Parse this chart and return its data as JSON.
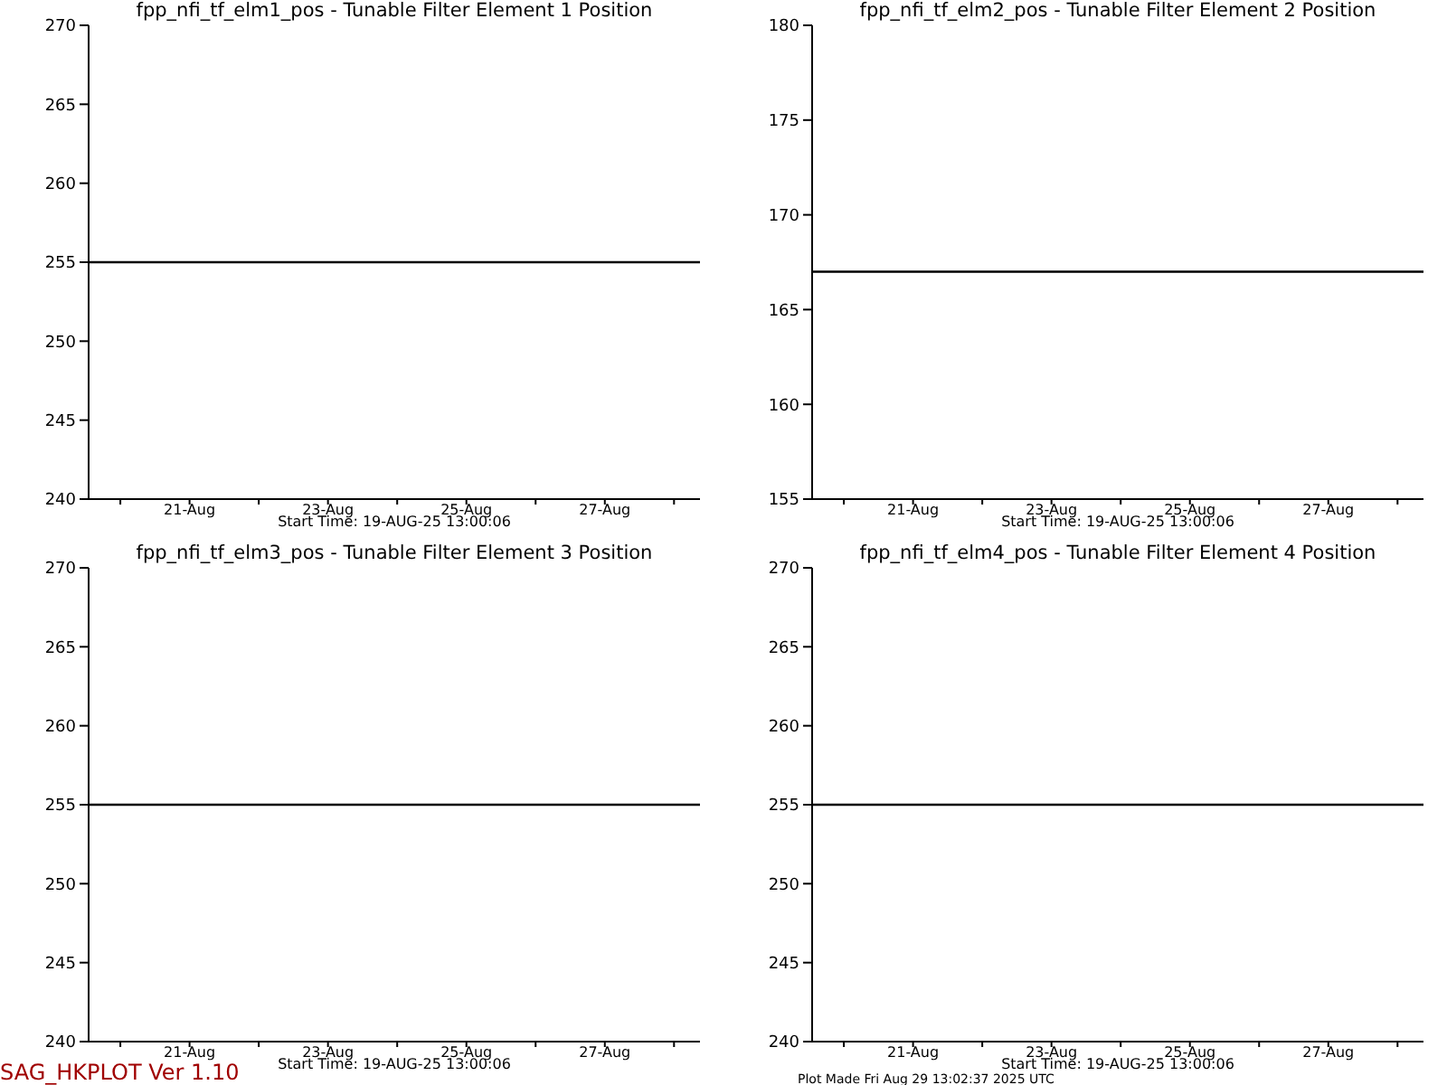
{
  "chart_data": [
    {
      "type": "line",
      "title": "fpp_nfi_tf_elm1_pos - Tunable Filter Element 1 Position",
      "xlabel": "Start Time: 19-AUG-25  13:00:06",
      "x": [
        "2025-08-19T13:00",
        "2025-08-28T09:00"
      ],
      "values": [
        255,
        255
      ],
      "color": "#000000",
      "marker": "none",
      "line_style": "solid",
      "xlim": [
        "2025-08-19T13:00",
        "2025-08-28T09:00"
      ],
      "xticks": [
        {
          "value": "2025-08-20",
          "label": null
        },
        {
          "value": "2025-08-21",
          "label": "21-Aug"
        },
        {
          "value": "2025-08-22",
          "label": null
        },
        {
          "value": "2025-08-23",
          "label": "23-Aug"
        },
        {
          "value": "2025-08-24",
          "label": null
        },
        {
          "value": "2025-08-25",
          "label": "25-Aug"
        },
        {
          "value": "2025-08-26",
          "label": null
        },
        {
          "value": "2025-08-27",
          "label": "27-Aug"
        },
        {
          "value": "2025-08-28",
          "label": null
        }
      ],
      "ylim": [
        240,
        270
      ],
      "yticks": [
        240,
        245,
        250,
        255,
        260,
        265,
        270
      ]
    },
    {
      "type": "line",
      "title": "fpp_nfi_tf_elm2_pos - Tunable Filter Element 2 Position",
      "xlabel": "Start Time: 19-AUG-25  13:00:06",
      "x": [
        "2025-08-19T13:00",
        "2025-08-28T09:00"
      ],
      "values": [
        167,
        167
      ],
      "color": "#000000",
      "marker": "none",
      "line_style": "solid",
      "xlim": [
        "2025-08-19T13:00",
        "2025-08-28T09:00"
      ],
      "xticks": [
        {
          "value": "2025-08-20",
          "label": null
        },
        {
          "value": "2025-08-21",
          "label": "21-Aug"
        },
        {
          "value": "2025-08-22",
          "label": null
        },
        {
          "value": "2025-08-23",
          "label": "23-Aug"
        },
        {
          "value": "2025-08-24",
          "label": null
        },
        {
          "value": "2025-08-25",
          "label": "25-Aug"
        },
        {
          "value": "2025-08-26",
          "label": null
        },
        {
          "value": "2025-08-27",
          "label": "27-Aug"
        },
        {
          "value": "2025-08-28",
          "label": null
        }
      ],
      "ylim": [
        155,
        180
      ],
      "yticks": [
        155,
        160,
        165,
        170,
        175,
        180
      ]
    },
    {
      "type": "line",
      "title": "fpp_nfi_tf_elm3_pos - Tunable Filter Element 3 Position",
      "xlabel": "Start Time: 19-AUG-25  13:00:06",
      "x": [
        "2025-08-19T13:00",
        "2025-08-28T09:00"
      ],
      "values": [
        255,
        255
      ],
      "color": "#000000",
      "marker": "none",
      "line_style": "solid",
      "xlim": [
        "2025-08-19T13:00",
        "2025-08-28T09:00"
      ],
      "xticks": [
        {
          "value": "2025-08-20",
          "label": null
        },
        {
          "value": "2025-08-21",
          "label": "21-Aug"
        },
        {
          "value": "2025-08-22",
          "label": null
        },
        {
          "value": "2025-08-23",
          "label": "23-Aug"
        },
        {
          "value": "2025-08-24",
          "label": null
        },
        {
          "value": "2025-08-25",
          "label": "25-Aug"
        },
        {
          "value": "2025-08-26",
          "label": null
        },
        {
          "value": "2025-08-27",
          "label": "27-Aug"
        },
        {
          "value": "2025-08-28",
          "label": null
        }
      ],
      "ylim": [
        240,
        270
      ],
      "yticks": [
        240,
        245,
        250,
        255,
        260,
        265,
        270
      ],
      "annotations": [
        "SAG_HKPLOT   Ver 1.10"
      ]
    },
    {
      "type": "line",
      "title": "fpp_nfi_tf_elm4_pos - Tunable Filter Element 4 Position",
      "xlabel": "Start Time: 19-AUG-25  13:00:06",
      "x": [
        "2025-08-19T13:00",
        "2025-08-28T09:00"
      ],
      "values": [
        255,
        255
      ],
      "color": "#000000",
      "marker": "none",
      "line_style": "solid",
      "xlim": [
        "2025-08-19T13:00",
        "2025-08-28T09:00"
      ],
      "xticks": [
        {
          "value": "2025-08-20",
          "label": null
        },
        {
          "value": "2025-08-21",
          "label": "21-Aug"
        },
        {
          "value": "2025-08-22",
          "label": null
        },
        {
          "value": "2025-08-23",
          "label": "23-Aug"
        },
        {
          "value": "2025-08-24",
          "label": null
        },
        {
          "value": "2025-08-25",
          "label": "25-Aug"
        },
        {
          "value": "2025-08-26",
          "label": null
        },
        {
          "value": "2025-08-27",
          "label": "27-Aug"
        },
        {
          "value": "2025-08-28",
          "label": null
        }
      ],
      "ylim": [
        240,
        270
      ],
      "yticks": [
        240,
        245,
        250,
        255,
        260,
        265,
        270
      ],
      "annotations": [
        "Plot Made Fri Aug 29 13:02:37 2025 UTC"
      ]
    }
  ]
}
